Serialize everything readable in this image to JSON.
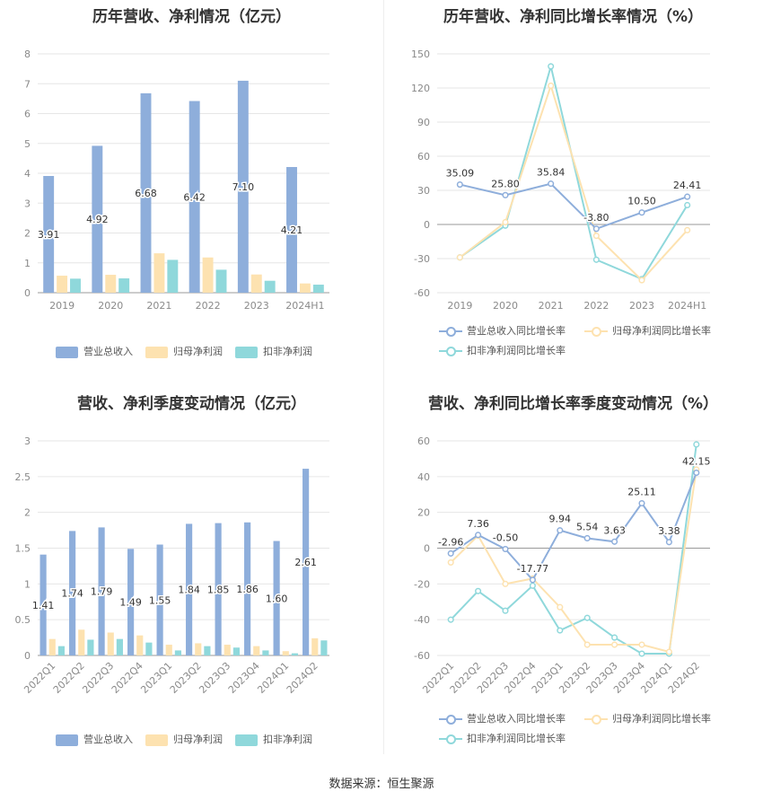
{
  "source_label": "数据来源：恒生聚源",
  "colors": {
    "revenue": "#8eaedb",
    "parent_profit": "#fde2b0",
    "deducted_profit": "#8fd8db",
    "revenue_line": "#8eaedb",
    "parent_line": "#fde2b0",
    "deducted_line": "#8fd8db",
    "grid": "#e6e6e6"
  },
  "chart_data": [
    {
      "id": "annual_amount",
      "type": "bar",
      "title": "历年营收、净利情况（亿元）",
      "categories": [
        "2019",
        "2020",
        "2021",
        "2022",
        "2023",
        "2024H1"
      ],
      "ylim": [
        0,
        8
      ],
      "yticks": [
        0,
        1,
        2,
        3,
        4,
        5,
        6,
        7,
        8
      ],
      "series": [
        {
          "name": "营业总收入",
          "values": [
            3.91,
            4.92,
            6.68,
            6.42,
            7.1,
            4.21
          ],
          "labels": [
            "3.91",
            "4.92",
            "6.68",
            "6.42",
            "7.10",
            "4.21"
          ]
        },
        {
          "name": "归母净利润",
          "values": [
            0.57,
            0.6,
            1.32,
            1.18,
            0.61,
            0.31
          ]
        },
        {
          "name": "扣非净利润",
          "values": [
            0.47,
            0.48,
            1.1,
            0.77,
            0.4,
            0.27
          ]
        }
      ],
      "legend_position": "bottom"
    },
    {
      "id": "annual_growth",
      "type": "line",
      "title": "历年营收、净利同比增长率情况（%）",
      "categories": [
        "2019",
        "2020",
        "2021",
        "2022",
        "2023",
        "2024H1"
      ],
      "ylim": [
        -60,
        150
      ],
      "yticks": [
        -60,
        -30,
        0,
        30,
        60,
        90,
        120,
        150
      ],
      "series": [
        {
          "name": "营业总收入同比增长率",
          "values": [
            35.09,
            25.8,
            35.84,
            -3.8,
            10.5,
            24.41
          ],
          "labels": [
            "35.09",
            "25.80",
            "35.84",
            "-3.80",
            "10.50",
            "24.41"
          ]
        },
        {
          "name": "归母净利润同比增长率",
          "values": [
            -29,
            2,
            122,
            -10,
            -49,
            -5
          ]
        },
        {
          "name": "扣非净利润同比增长率",
          "values": [
            -29,
            -1,
            139,
            -31,
            -48,
            17
          ]
        }
      ],
      "legend_position": "bottom"
    },
    {
      "id": "quarterly_amount",
      "type": "bar",
      "title": "营收、净利季度变动情况（亿元）",
      "categories": [
        "2022Q1",
        "2022Q2",
        "2022Q3",
        "2022Q4",
        "2023Q1",
        "2023Q2",
        "2023Q3",
        "2023Q4",
        "2024Q1",
        "2024Q2"
      ],
      "ylim": [
        0,
        3
      ],
      "yticks": [
        0,
        0.5,
        1,
        1.5,
        2,
        2.5,
        3
      ],
      "series": [
        {
          "name": "营业总收入",
          "values": [
            1.41,
            1.74,
            1.79,
            1.49,
            1.55,
            1.84,
            1.85,
            1.86,
            1.6,
            2.61
          ],
          "labels": [
            "1.41",
            "1.74",
            "1.79",
            "1.49",
            "1.55",
            "1.84",
            "1.85",
            "1.86",
            "1.60",
            "2.61"
          ]
        },
        {
          "name": "归母净利润",
          "values": [
            0.23,
            0.36,
            0.32,
            0.28,
            0.15,
            0.17,
            0.15,
            0.13,
            0.06,
            0.24
          ]
        },
        {
          "name": "扣非净利润",
          "values": [
            0.13,
            0.22,
            0.23,
            0.18,
            0.07,
            0.13,
            0.11,
            0.07,
            0.03,
            0.21
          ]
        }
      ],
      "legend_position": "bottom"
    },
    {
      "id": "quarterly_growth",
      "type": "line",
      "title": "营收、净利同比增长率季度变动情况（%）",
      "categories": [
        "2022Q1",
        "2022Q2",
        "2022Q3",
        "2022Q4",
        "2023Q1",
        "2023Q2",
        "2023Q3",
        "2023Q4",
        "2024Q1",
        "2024Q2"
      ],
      "ylim": [
        -60,
        60
      ],
      "yticks": [
        -60,
        -40,
        -20,
        0,
        20,
        40,
        60
      ],
      "series": [
        {
          "name": "营业总收入同比增长率",
          "values": [
            -2.96,
            7.36,
            -0.5,
            -17.77,
            9.94,
            5.54,
            3.63,
            25.11,
            3.38,
            42.15
          ],
          "labels": [
            "-2.96",
            "7.36",
            "-0.50",
            "-17.77",
            "9.94",
            "5.54",
            "3.63",
            "25.11",
            "3.38",
            "42.15"
          ]
        },
        {
          "name": "归母净利润同比增长率",
          "values": [
            -8,
            7,
            -20,
            -17,
            -33,
            -54,
            -54,
            -54,
            -58,
            44
          ]
        },
        {
          "name": "扣非净利润同比增长率",
          "values": [
            -40,
            -24,
            -35,
            -21,
            -46,
            -39,
            -50,
            -59,
            -59,
            58
          ]
        }
      ],
      "legend_position": "bottom"
    }
  ]
}
